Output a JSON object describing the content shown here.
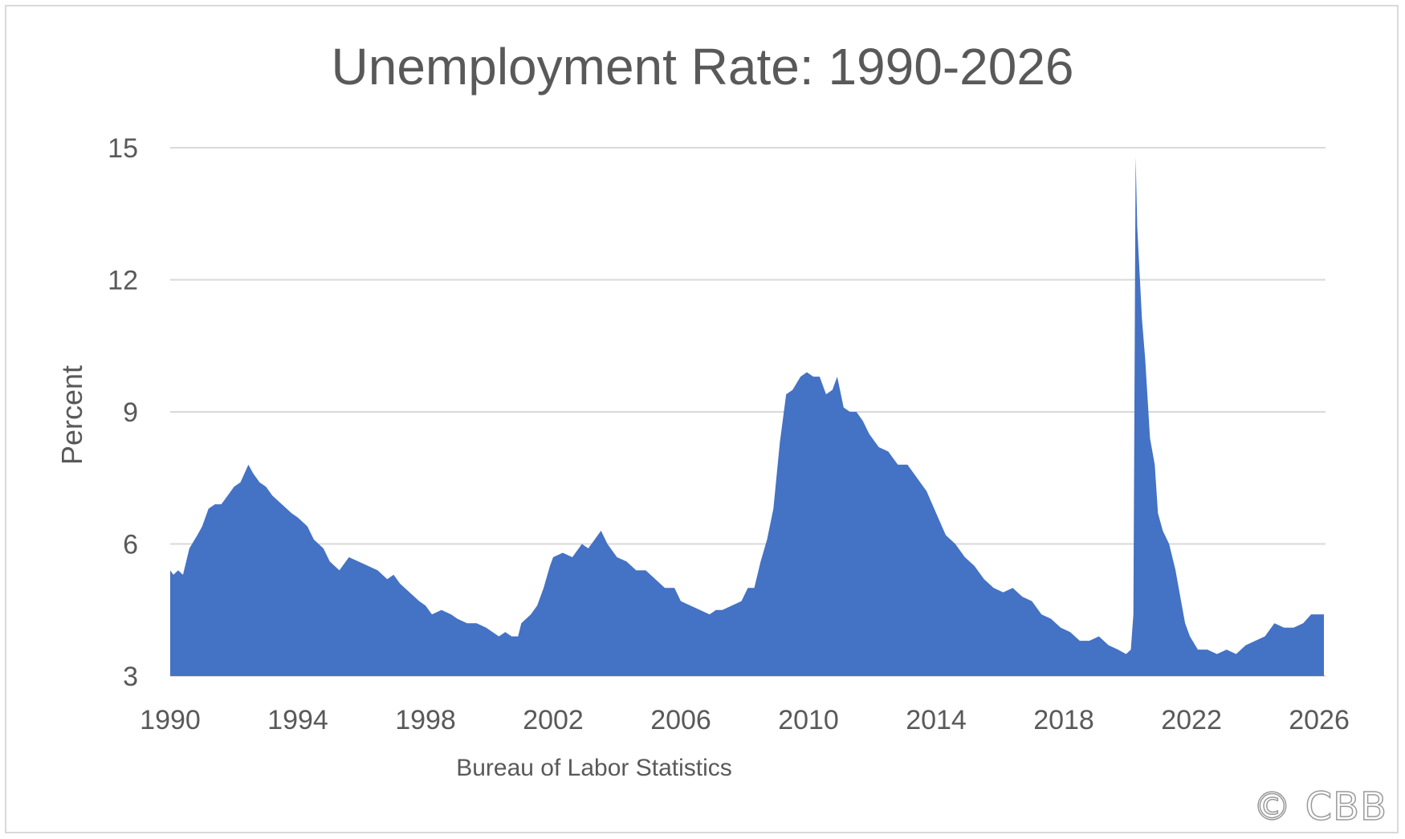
{
  "watermark": "© CBB",
  "chart_data": {
    "type": "area",
    "title": "Unemployment Rate: 1990-2026",
    "ylabel": "Percent",
    "xlabel": "Bureau of Labor Statistics",
    "ylim": [
      3,
      15
    ],
    "xlim": [
      1990,
      2026.2
    ],
    "yticks": [
      3,
      6,
      9,
      12,
      15
    ],
    "xticks": [
      1990,
      1994,
      1998,
      2002,
      2006,
      2010,
      2014,
      2018,
      2022,
      2026
    ],
    "grid": "horizontal",
    "legend": "none",
    "colors": {
      "area": "#4472C4",
      "grid": "#d9d9d9",
      "text": "#595959"
    },
    "series": [
      {
        "x": [
          1990.0,
          1990.1,
          1990.25,
          1990.4,
          1990.6,
          1990.85,
          1991.0,
          1991.2,
          1991.4,
          1991.6,
          1991.8,
          1992.0,
          1992.2,
          1992.45,
          1992.6,
          1992.8,
          1993.0,
          1993.2,
          1993.5,
          1993.8,
          1994.0,
          1994.3,
          1994.5,
          1994.8,
          1995.0,
          1995.3,
          1995.6,
          1995.9,
          1996.2,
          1996.5,
          1996.8,
          1997.0,
          1997.2,
          1997.5,
          1997.8,
          1998.0,
          1998.2,
          1998.5,
          1998.8,
          1999.0,
          1999.3,
          1999.6,
          1999.9,
          2000.1,
          2000.3,
          2000.5,
          2000.7,
          2000.9,
          2001.0,
          2001.3,
          2001.5,
          2001.7,
          2001.9,
          2002.0,
          2002.3,
          2002.6,
          2002.9,
          2003.1,
          2003.3,
          2003.5,
          2003.7,
          2004.0,
          2004.3,
          2004.6,
          2004.9,
          2005.2,
          2005.5,
          2005.8,
          2006.0,
          2006.3,
          2006.6,
          2006.9,
          2007.1,
          2007.3,
          2007.6,
          2007.9,
          2008.1,
          2008.3,
          2008.5,
          2008.7,
          2008.9,
          2009.1,
          2009.3,
          2009.5,
          2009.75,
          2009.95,
          2010.15,
          2010.35,
          2010.55,
          2010.75,
          2010.9,
          2011.1,
          2011.3,
          2011.5,
          2011.7,
          2011.9,
          2012.2,
          2012.5,
          2012.8,
          2013.1,
          2013.4,
          2013.7,
          2014.0,
          2014.3,
          2014.6,
          2014.9,
          2015.2,
          2015.5,
          2015.8,
          2016.1,
          2016.4,
          2016.7,
          2017.0,
          2017.3,
          2017.6,
          2017.9,
          2018.2,
          2018.5,
          2018.8,
          2019.1,
          2019.4,
          2019.7,
          2019.95,
          2020.1,
          2020.18,
          2020.25,
          2020.3,
          2020.45,
          2020.55,
          2020.7,
          2020.85,
          2020.95,
          2021.1,
          2021.3,
          2021.5,
          2021.65,
          2021.8,
          2021.95,
          2022.2,
          2022.5,
          2022.8,
          2023.1,
          2023.4,
          2023.7,
          2024.0,
          2024.3,
          2024.6,
          2024.9,
          2025.2,
          2025.5,
          2025.75,
          2026.0,
          2026.15
        ],
        "y": [
          5.4,
          5.3,
          5.4,
          5.3,
          5.9,
          6.2,
          6.4,
          6.8,
          6.9,
          6.9,
          7.1,
          7.3,
          7.4,
          7.8,
          7.6,
          7.4,
          7.3,
          7.1,
          6.9,
          6.7,
          6.6,
          6.4,
          6.1,
          5.9,
          5.6,
          5.4,
          5.7,
          5.6,
          5.5,
          5.4,
          5.2,
          5.3,
          5.1,
          4.9,
          4.7,
          4.6,
          4.4,
          4.5,
          4.4,
          4.3,
          4.2,
          4.2,
          4.1,
          4.0,
          3.9,
          4.0,
          3.9,
          3.9,
          4.2,
          4.4,
          4.6,
          5.0,
          5.5,
          5.7,
          5.8,
          5.7,
          6.0,
          5.9,
          6.1,
          6.3,
          6.0,
          5.7,
          5.6,
          5.4,
          5.4,
          5.2,
          5.0,
          5.0,
          4.7,
          4.6,
          4.5,
          4.4,
          4.5,
          4.5,
          4.6,
          4.7,
          5.0,
          5.0,
          5.6,
          6.1,
          6.8,
          8.3,
          9.4,
          9.5,
          9.8,
          9.9,
          9.8,
          9.8,
          9.4,
          9.5,
          9.8,
          9.1,
          9.0,
          9.0,
          8.8,
          8.5,
          8.2,
          8.1,
          7.8,
          7.8,
          7.5,
          7.2,
          6.7,
          6.2,
          6.0,
          5.7,
          5.5,
          5.2,
          5.0,
          4.9,
          5.0,
          4.8,
          4.7,
          4.4,
          4.3,
          4.1,
          4.0,
          3.8,
          3.8,
          3.9,
          3.7,
          3.6,
          3.5,
          3.6,
          4.4,
          14.8,
          13.2,
          11.1,
          10.2,
          8.4,
          7.8,
          6.7,
          6.3,
          6.0,
          5.4,
          4.8,
          4.2,
          3.9,
          3.6,
          3.6,
          3.5,
          3.6,
          3.5,
          3.7,
          3.8,
          3.9,
          4.2,
          4.1,
          4.1,
          4.2,
          4.4,
          4.4,
          4.4
        ]
      }
    ]
  }
}
